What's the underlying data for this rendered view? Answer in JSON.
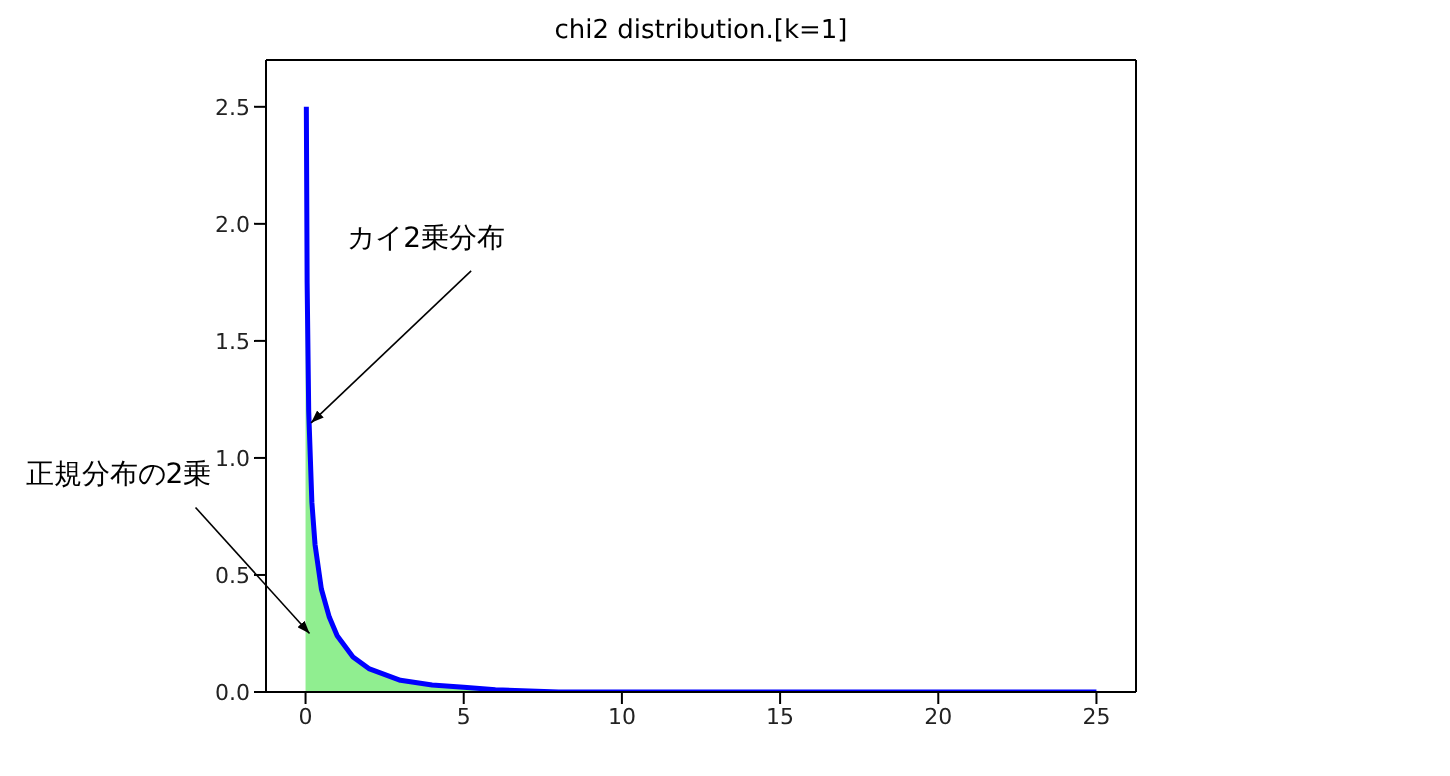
{
  "chart_data": {
    "type": "line",
    "title": "chi2 distribution.[k=1]",
    "series": [
      {
        "type": "area",
        "color": "#90ee90",
        "x": [
          0,
          0.03,
          0.05,
          0.1,
          0.2,
          0.3,
          0.5,
          0.75,
          1,
          1.5,
          2,
          3,
          4,
          5,
          6,
          8,
          10
        ],
        "values": [
          1.8,
          1.8,
          1.75,
          1.2,
          0.81,
          0.63,
          0.44,
          0.32,
          0.24,
          0.15,
          0.1,
          0.05,
          0.03,
          0.02,
          0.01,
          0,
          0
        ]
      },
      {
        "color": "#0000ff",
        "x": [
          0.025,
          0.05,
          0.1,
          0.2,
          0.3,
          0.5,
          0.75,
          1,
          1.5,
          2,
          3,
          4,
          5,
          6,
          8,
          10,
          15,
          20,
          25
        ],
        "values": [
          2.5,
          1.75,
          1.2,
          0.81,
          0.63,
          0.44,
          0.32,
          0.24,
          0.15,
          0.1,
          0.05,
          0.03,
          0.02,
          0.01,
          0,
          0,
          0,
          0,
          0
        ]
      }
    ],
    "xlim": [
      -1.25,
      26.25
    ],
    "xticks": [
      0,
      5,
      10,
      15,
      20,
      25
    ],
    "ylim": [
      0,
      2.7
    ],
    "yticks": [
      {
        "value": 0,
        "label": "0.0"
      },
      {
        "value": 0.5,
        "label": "0.5"
      },
      {
        "value": 1,
        "label": "1.0"
      },
      {
        "value": 1.5,
        "label": "1.5"
      },
      {
        "value": 2,
        "label": "2.0"
      },
      {
        "value": 2.5,
        "label": "2.5"
      }
    ],
    "annotations": [
      {
        "text": "カイ2乗分布",
        "x": 0.05,
        "y": 1.15
      },
      {
        "text": "正規分布の2乗",
        "x": 0,
        "y": 0.25
      }
    ],
    "grid": false,
    "legend": false,
    "marker": "none",
    "line_style": "solid"
  }
}
